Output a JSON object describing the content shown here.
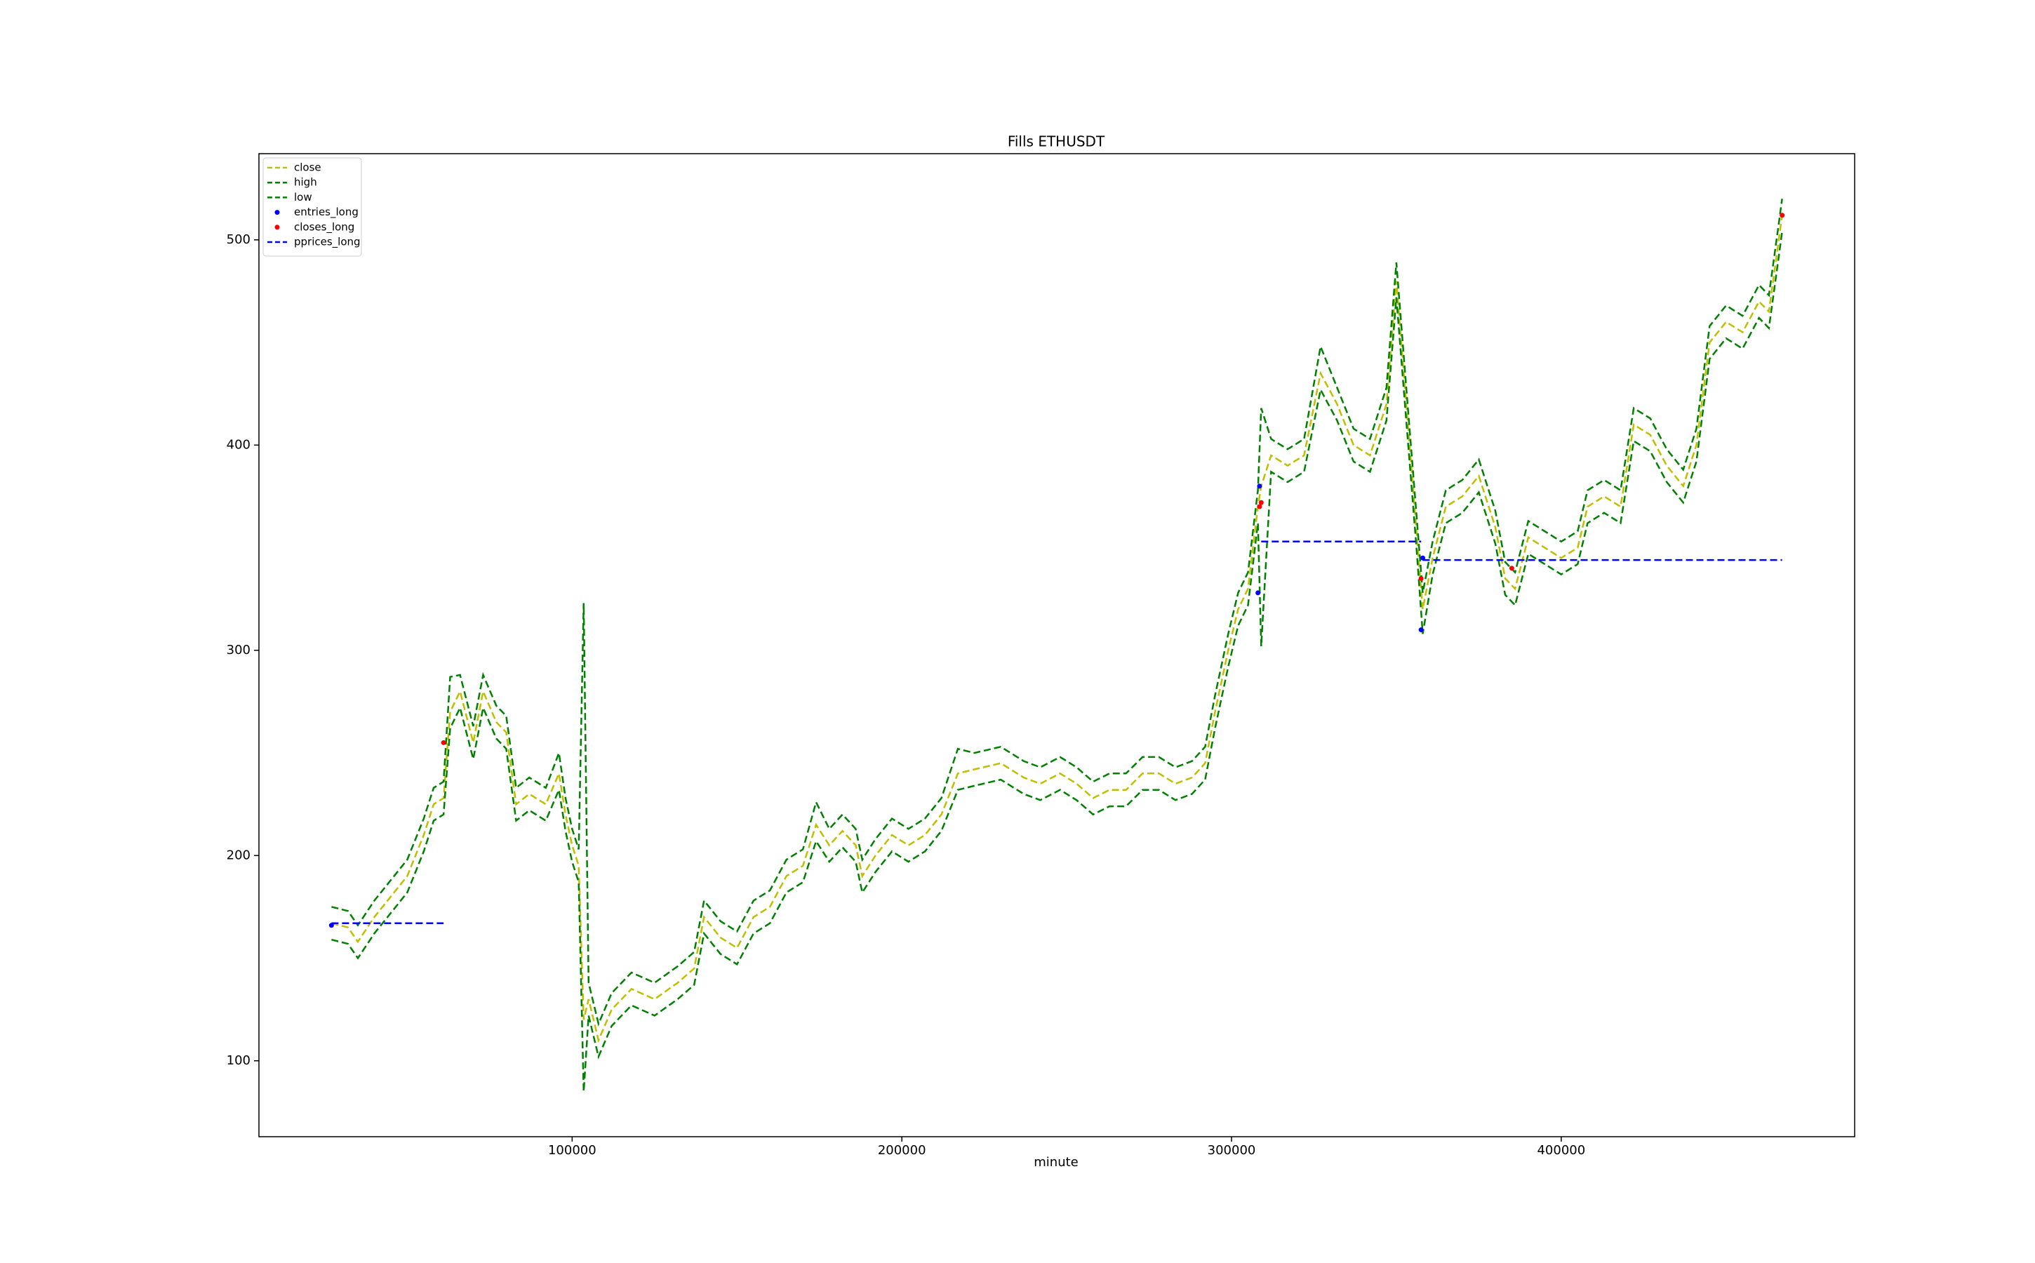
{
  "chart_data": {
    "type": "line",
    "title": "Fills ETHUSDT",
    "x_label": "minute",
    "xlim": [
      5000,
      489000
    ],
    "ylim": [
      63,
      542
    ],
    "xticks": [
      100000,
      200000,
      300000,
      400000
    ],
    "yticks": [
      100,
      200,
      300,
      400,
      500
    ],
    "grid": false,
    "legend": "upper left",
    "x": [
      27000,
      32000,
      35000,
      40000,
      45000,
      50000,
      55000,
      58000,
      61000,
      63000,
      66000,
      70000,
      73000,
      77000,
      80000,
      83000,
      87000,
      92000,
      96000,
      98000,
      100000,
      102000,
      103500,
      105000,
      108000,
      112000,
      118000,
      125000,
      132000,
      137000,
      140000,
      145000,
      150000,
      155000,
      160000,
      165000,
      170000,
      174000,
      178000,
      182000,
      186000,
      188000,
      192000,
      197000,
      202000,
      207000,
      212000,
      217000,
      222000,
      230000,
      237000,
      242000,
      248000,
      253000,
      258000,
      263000,
      268000,
      273000,
      278000,
      283000,
      288000,
      292000,
      295000,
      299000,
      302000,
      305000,
      308000,
      309000,
      312000,
      317000,
      322000,
      327000,
      332000,
      337000,
      342000,
      347000,
      350000,
      353000,
      356000,
      358000,
      361000,
      365000,
      370000,
      375000,
      380000,
      383000,
      386000,
      390000,
      395000,
      400000,
      405000,
      408000,
      413000,
      418000,
      422000,
      427000,
      432000,
      437000,
      441000,
      445000,
      450000,
      455000,
      460000,
      463000,
      466000,
      467000
    ],
    "series": [
      {
        "name": "close",
        "color": "#bfbf00",
        "linestyle": "dashed",
        "values": [
          167,
          165,
          158,
          170,
          180,
          190,
          210,
          225,
          228,
          270,
          280,
          255,
          280,
          265,
          260,
          225,
          230,
          225,
          240,
          220,
          205,
          195,
          120,
          130,
          110,
          125,
          135,
          130,
          138,
          145,
          170,
          160,
          155,
          170,
          175,
          190,
          195,
          215,
          205,
          212,
          205,
          190,
          200,
          210,
          205,
          210,
          220,
          240,
          242,
          245,
          238,
          235,
          240,
          235,
          228,
          232,
          232,
          240,
          240,
          235,
          238,
          245,
          270,
          300,
          320,
          330,
          370,
          380,
          395,
          390,
          395,
          435,
          420,
          400,
          395,
          420,
          480,
          420,
          360,
          320,
          345,
          370,
          375,
          385,
          360,
          335,
          330,
          355,
          350,
          345,
          350,
          370,
          375,
          370,
          410,
          405,
          390,
          380,
          400,
          450,
          460,
          455,
          470,
          465,
          500,
          512
        ]
      },
      {
        "name": "high",
        "color": "#008000",
        "linestyle": "dashed",
        "values": [
          175,
          173,
          166,
          178,
          188,
          198,
          218,
          233,
          236,
          287,
          288,
          263,
          288,
          273,
          268,
          233,
          238,
          233,
          250,
          228,
          213,
          203,
          323,
          138,
          118,
          133,
          143,
          138,
          146,
          153,
          178,
          168,
          163,
          178,
          183,
          198,
          203,
          226,
          213,
          220,
          213,
          198,
          208,
          218,
          213,
          218,
          228,
          252,
          250,
          253,
          246,
          243,
          248,
          243,
          236,
          240,
          240,
          248,
          248,
          243,
          246,
          253,
          278,
          308,
          328,
          338,
          378,
          418,
          403,
          398,
          403,
          448,
          428,
          408,
          403,
          428,
          489,
          428,
          368,
          328,
          353,
          378,
          383,
          393,
          368,
          343,
          338,
          363,
          358,
          353,
          358,
          378,
          383,
          378,
          418,
          413,
          398,
          388,
          408,
          458,
          468,
          463,
          478,
          473,
          508,
          520
        ]
      },
      {
        "name": "low",
        "color": "#008000",
        "linestyle": "dashed",
        "values": [
          159,
          157,
          150,
          162,
          172,
          182,
          202,
          217,
          220,
          262,
          272,
          247,
          272,
          257,
          252,
          217,
          222,
          217,
          232,
          212,
          197,
          187,
          85,
          122,
          102,
          117,
          127,
          122,
          130,
          137,
          162,
          152,
          147,
          162,
          167,
          182,
          187,
          207,
          197,
          204,
          197,
          182,
          192,
          202,
          197,
          202,
          212,
          232,
          234,
          237,
          230,
          227,
          232,
          227,
          220,
          224,
          224,
          232,
          232,
          227,
          230,
          237,
          262,
          292,
          312,
          322,
          362,
          302,
          387,
          382,
          387,
          427,
          412,
          392,
          387,
          412,
          472,
          412,
          352,
          308,
          337,
          362,
          367,
          377,
          352,
          327,
          322,
          347,
          342,
          337,
          342,
          362,
          367,
          362,
          402,
          397,
          382,
          372,
          392,
          442,
          452,
          447,
          462,
          457,
          492,
          504
        ]
      },
      {
        "name": "entries_long",
        "color": "#0000ff",
        "marker": "dot",
        "x": [
          27000,
          308000,
          308500,
          357500,
          358000
        ],
        "values": [
          166,
          328,
          380,
          310,
          345
        ]
      },
      {
        "name": "closes_long",
        "color": "#ff0000",
        "marker": "dot",
        "x": [
          61000,
          308500,
          309000,
          357500,
          385000,
          467000
        ],
        "values": [
          255,
          370,
          372,
          335,
          340,
          512
        ]
      },
      {
        "name": "pprices_long",
        "color": "#0000ff",
        "linestyle": "dashed",
        "x": [
          27000,
          61000,
          61000,
          309000,
          357500,
          357500,
          358000,
          467000
        ],
        "values": [
          167,
          167,
          null,
          353,
          353,
          null,
          344,
          344
        ]
      }
    ]
  }
}
